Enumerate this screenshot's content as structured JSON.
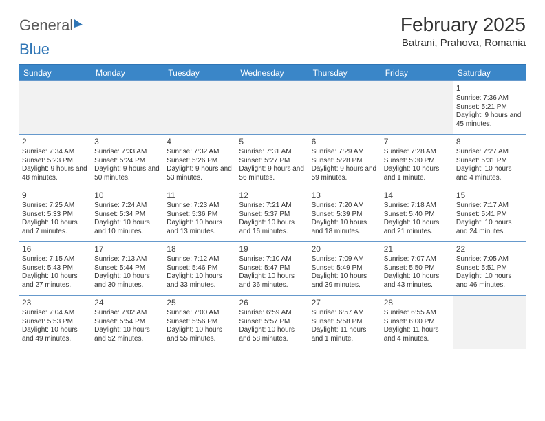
{
  "brand": {
    "part1": "General",
    "part2": "Blue"
  },
  "title": "February 2025",
  "location": "Batrani, Prahova, Romania",
  "colors": {
    "header_bar": "#3a86c8",
    "divider": "#6699cc",
    "brand_blue": "#2f75b5",
    "text": "#333333",
    "empty_cell": "#f2f2f2",
    "background": "#ffffff"
  },
  "typography": {
    "title_fontsize": 28,
    "location_fontsize": 15,
    "dayhead_fontsize": 12,
    "cell_fontsize": 10,
    "daynum_fontsize": 12
  },
  "day_headers": [
    "Sunday",
    "Monday",
    "Tuesday",
    "Wednesday",
    "Thursday",
    "Friday",
    "Saturday"
  ],
  "weeks": [
    [
      null,
      null,
      null,
      null,
      null,
      null,
      {
        "n": "1",
        "sunrise": "Sunrise: 7:36 AM",
        "sunset": "Sunset: 5:21 PM",
        "daylight": "Daylight: 9 hours and 45 minutes."
      }
    ],
    [
      {
        "n": "2",
        "sunrise": "Sunrise: 7:34 AM",
        "sunset": "Sunset: 5:23 PM",
        "daylight": "Daylight: 9 hours and 48 minutes."
      },
      {
        "n": "3",
        "sunrise": "Sunrise: 7:33 AM",
        "sunset": "Sunset: 5:24 PM",
        "daylight": "Daylight: 9 hours and 50 minutes."
      },
      {
        "n": "4",
        "sunrise": "Sunrise: 7:32 AM",
        "sunset": "Sunset: 5:26 PM",
        "daylight": "Daylight: 9 hours and 53 minutes."
      },
      {
        "n": "5",
        "sunrise": "Sunrise: 7:31 AM",
        "sunset": "Sunset: 5:27 PM",
        "daylight": "Daylight: 9 hours and 56 minutes."
      },
      {
        "n": "6",
        "sunrise": "Sunrise: 7:29 AM",
        "sunset": "Sunset: 5:28 PM",
        "daylight": "Daylight: 9 hours and 59 minutes."
      },
      {
        "n": "7",
        "sunrise": "Sunrise: 7:28 AM",
        "sunset": "Sunset: 5:30 PM",
        "daylight": "Daylight: 10 hours and 1 minute."
      },
      {
        "n": "8",
        "sunrise": "Sunrise: 7:27 AM",
        "sunset": "Sunset: 5:31 PM",
        "daylight": "Daylight: 10 hours and 4 minutes."
      }
    ],
    [
      {
        "n": "9",
        "sunrise": "Sunrise: 7:25 AM",
        "sunset": "Sunset: 5:33 PM",
        "daylight": "Daylight: 10 hours and 7 minutes."
      },
      {
        "n": "10",
        "sunrise": "Sunrise: 7:24 AM",
        "sunset": "Sunset: 5:34 PM",
        "daylight": "Daylight: 10 hours and 10 minutes."
      },
      {
        "n": "11",
        "sunrise": "Sunrise: 7:23 AM",
        "sunset": "Sunset: 5:36 PM",
        "daylight": "Daylight: 10 hours and 13 minutes."
      },
      {
        "n": "12",
        "sunrise": "Sunrise: 7:21 AM",
        "sunset": "Sunset: 5:37 PM",
        "daylight": "Daylight: 10 hours and 16 minutes."
      },
      {
        "n": "13",
        "sunrise": "Sunrise: 7:20 AM",
        "sunset": "Sunset: 5:39 PM",
        "daylight": "Daylight: 10 hours and 18 minutes."
      },
      {
        "n": "14",
        "sunrise": "Sunrise: 7:18 AM",
        "sunset": "Sunset: 5:40 PM",
        "daylight": "Daylight: 10 hours and 21 minutes."
      },
      {
        "n": "15",
        "sunrise": "Sunrise: 7:17 AM",
        "sunset": "Sunset: 5:41 PM",
        "daylight": "Daylight: 10 hours and 24 minutes."
      }
    ],
    [
      {
        "n": "16",
        "sunrise": "Sunrise: 7:15 AM",
        "sunset": "Sunset: 5:43 PM",
        "daylight": "Daylight: 10 hours and 27 minutes."
      },
      {
        "n": "17",
        "sunrise": "Sunrise: 7:13 AM",
        "sunset": "Sunset: 5:44 PM",
        "daylight": "Daylight: 10 hours and 30 minutes."
      },
      {
        "n": "18",
        "sunrise": "Sunrise: 7:12 AM",
        "sunset": "Sunset: 5:46 PM",
        "daylight": "Daylight: 10 hours and 33 minutes."
      },
      {
        "n": "19",
        "sunrise": "Sunrise: 7:10 AM",
        "sunset": "Sunset: 5:47 PM",
        "daylight": "Daylight: 10 hours and 36 minutes."
      },
      {
        "n": "20",
        "sunrise": "Sunrise: 7:09 AM",
        "sunset": "Sunset: 5:49 PM",
        "daylight": "Daylight: 10 hours and 39 minutes."
      },
      {
        "n": "21",
        "sunrise": "Sunrise: 7:07 AM",
        "sunset": "Sunset: 5:50 PM",
        "daylight": "Daylight: 10 hours and 43 minutes."
      },
      {
        "n": "22",
        "sunrise": "Sunrise: 7:05 AM",
        "sunset": "Sunset: 5:51 PM",
        "daylight": "Daylight: 10 hours and 46 minutes."
      }
    ],
    [
      {
        "n": "23",
        "sunrise": "Sunrise: 7:04 AM",
        "sunset": "Sunset: 5:53 PM",
        "daylight": "Daylight: 10 hours and 49 minutes."
      },
      {
        "n": "24",
        "sunrise": "Sunrise: 7:02 AM",
        "sunset": "Sunset: 5:54 PM",
        "daylight": "Daylight: 10 hours and 52 minutes."
      },
      {
        "n": "25",
        "sunrise": "Sunrise: 7:00 AM",
        "sunset": "Sunset: 5:56 PM",
        "daylight": "Daylight: 10 hours and 55 minutes."
      },
      {
        "n": "26",
        "sunrise": "Sunrise: 6:59 AM",
        "sunset": "Sunset: 5:57 PM",
        "daylight": "Daylight: 10 hours and 58 minutes."
      },
      {
        "n": "27",
        "sunrise": "Sunrise: 6:57 AM",
        "sunset": "Sunset: 5:58 PM",
        "daylight": "Daylight: 11 hours and 1 minute."
      },
      {
        "n": "28",
        "sunrise": "Sunrise: 6:55 AM",
        "sunset": "Sunset: 6:00 PM",
        "daylight": "Daylight: 11 hours and 4 minutes."
      },
      null
    ]
  ]
}
